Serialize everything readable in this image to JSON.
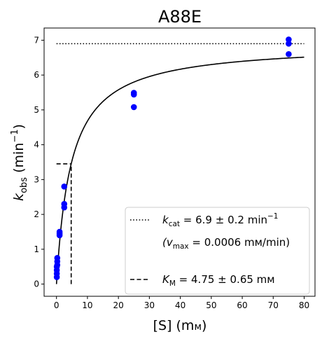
{
  "chart_data": {
    "type": "scatter",
    "title": "A88E",
    "xlabel": {
      "main": "[S] (m",
      "unit_small": "м",
      "close": ")"
    },
    "ylabel": {
      "k": "k",
      "sub": "obs",
      "unit": " (min",
      "sup": "−1",
      "close": ")"
    },
    "xlim": [
      -4,
      83.5
    ],
    "ylim": [
      -0.35,
      7.35
    ],
    "xticks": [
      0,
      10,
      20,
      30,
      40,
      50,
      60,
      70,
      80
    ],
    "yticks": [
      0,
      1,
      2,
      3,
      4,
      5,
      6,
      7
    ],
    "grid": false,
    "legend_position": "lower-right",
    "colors": {
      "points": "#0000ff",
      "lines": "#000000"
    },
    "series": [
      {
        "kind": "points",
        "points": [
          [
            0.1,
            0.2
          ],
          [
            0.1,
            0.3
          ],
          [
            0.1,
            0.4
          ],
          [
            0.1,
            0.5
          ],
          [
            0.25,
            0.55
          ],
          [
            0.25,
            0.65
          ],
          [
            0.25,
            0.75
          ],
          [
            1.0,
            1.4
          ],
          [
            1.0,
            1.45
          ],
          [
            1.0,
            1.5
          ],
          [
            2.5,
            2.2
          ],
          [
            2.5,
            2.3
          ],
          [
            2.5,
            2.8
          ],
          [
            25,
            5.08
          ],
          [
            25,
            5.44
          ],
          [
            25,
            5.49
          ],
          [
            75,
            6.6
          ],
          [
            75,
            6.9
          ],
          [
            75,
            7.02
          ]
        ]
      },
      {
        "kind": "fit",
        "kcat": 6.9,
        "KM": 4.75,
        "x_range": [
          0,
          80
        ]
      }
    ],
    "reference_lines": {
      "kcat_level": 6.9,
      "kcat_x_range": [
        0,
        80
      ],
      "KM_x": 4.75,
      "KM_y": 3.45,
      "KM_hline_x_start": 0
    },
    "legend": [
      {
        "style": "dotted",
        "k": "k",
        "sub": "cat",
        "text": " = 6.9 ± 0.2 min",
        "sup": "−1"
      },
      {
        "style": "none",
        "open": "(v",
        "sub": "max",
        "text": " = 0.0006 mм/min)"
      },
      {
        "style": "dashed",
        "k": "K",
        "sub": "M",
        "text": " = 4.75 ± 0.65 mм"
      }
    ]
  }
}
